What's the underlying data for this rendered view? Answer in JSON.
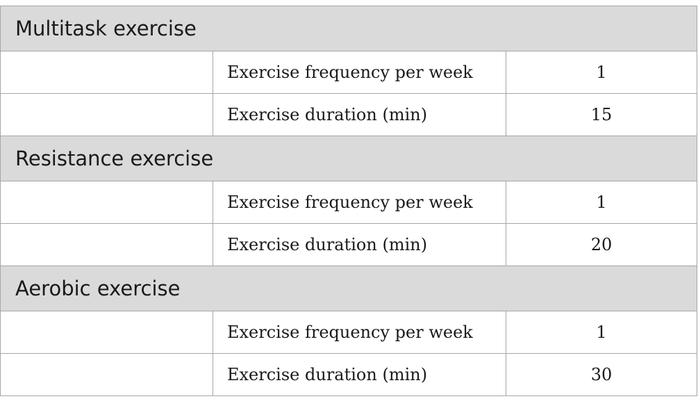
{
  "sections": [
    {
      "title": "Multitask exercise",
      "rows": [
        {
          "label": "Exercise frequency per week",
          "value": "1"
        },
        {
          "label": "Exercise duration (min)",
          "value": "15"
        }
      ]
    },
    {
      "title": "Resistance exercise",
      "rows": [
        {
          "label": "Exercise frequency per week",
          "value": "1"
        },
        {
          "label": "Exercise duration (min)",
          "value": "20"
        }
      ]
    },
    {
      "title": "Aerobic exercise",
      "rows": [
        {
          "label": "Exercise frequency per week",
          "value": "1"
        },
        {
          "label": "Exercise duration (min)",
          "value": "30"
        }
      ]
    }
  ]
}
